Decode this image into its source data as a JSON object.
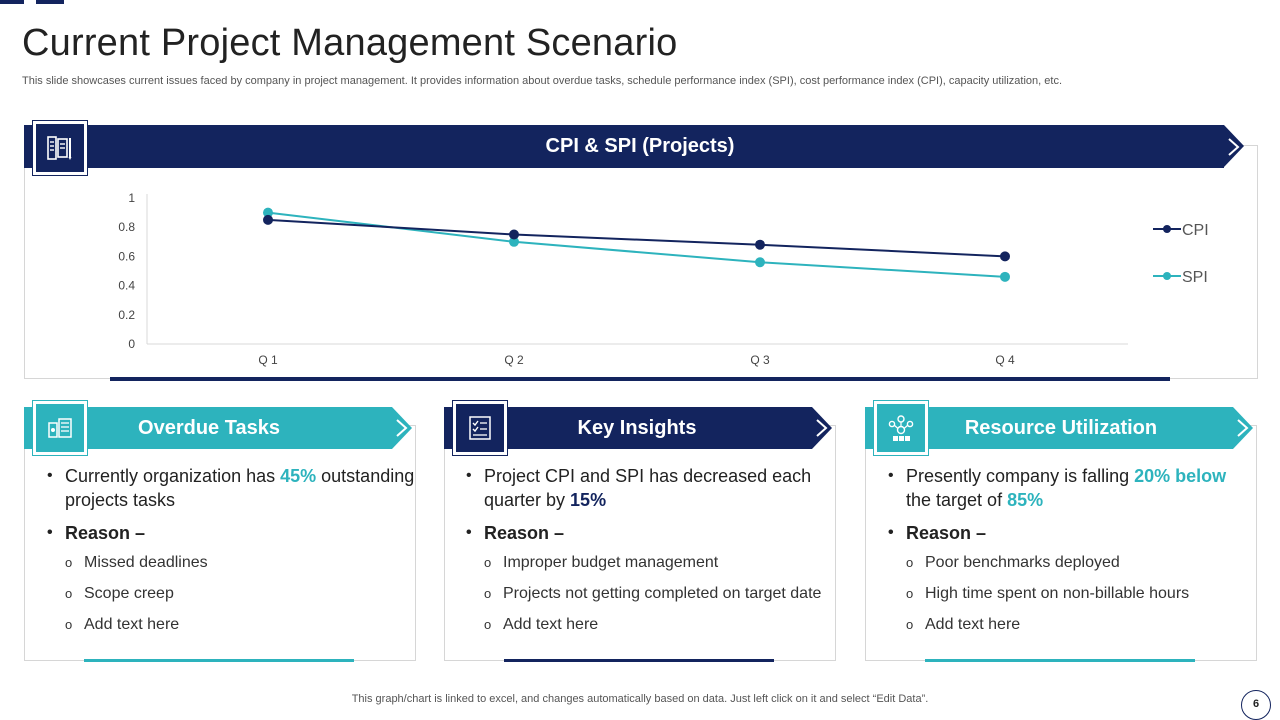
{
  "page": {
    "title": "Current Project Management Scenario",
    "subtitle": "This slide showcases current issues faced by company in project management. It provides information about overdue tasks, schedule performance index (SPI), cost performance index (CPI), capacity utilization, etc.",
    "footer": "This graph/chart is linked to excel,  and changes automatically based on data. Just left click on it and select “Edit Data”.",
    "page_number": "6"
  },
  "colors": {
    "navy": "#13245e",
    "teal": "#2db3bd"
  },
  "chart_panel": {
    "title": "CPI & SPI (Projects)",
    "icon": "document-list-icon"
  },
  "chart_data": {
    "type": "line",
    "title": "CPI & SPI (Projects)",
    "categories": [
      "Q 1",
      "Q 2",
      "Q 3",
      "Q 4"
    ],
    "series": [
      {
        "name": "CPI",
        "values": [
          0.85,
          0.75,
          0.68,
          0.6
        ],
        "color": "#13245e"
      },
      {
        "name": "SPI",
        "values": [
          0.9,
          0.7,
          0.56,
          0.46
        ],
        "color": "#2db3bd"
      }
    ],
    "ylim": [
      0,
      1
    ],
    "yticks": [
      "0",
      "0.2",
      "0.4",
      "0.6",
      "0.8",
      "1"
    ],
    "xlabel": "",
    "ylabel": "",
    "legend": "right"
  },
  "cards": [
    {
      "title": "Overdue Tasks",
      "icon": "tasks-board-icon",
      "line1_pre": "Currently organization has ",
      "line1_hl": "45%",
      "line1_post": " outstanding projects tasks",
      "reason": "Reason –",
      "items": [
        "Missed deadlines",
        "Scope creep",
        "Add text here"
      ]
    },
    {
      "title": "Key Insights",
      "icon": "checklist-icon",
      "line1_pre": "Project CPI and SPI has decreased each quarter by ",
      "line1_hl": "15%",
      "line1_post": "",
      "reason": "Reason –",
      "items": [
        "Improper budget management",
        "Projects not getting completed on target date",
        "Add text here"
      ]
    },
    {
      "title": "Resource Utilization",
      "icon": "team-network-icon",
      "line1_pre": "Presently company is falling ",
      "line1_hl": "20% below",
      "line1_mid": " the target of ",
      "line1_hl2": "85%",
      "reason": "Reason –",
      "items": [
        "Poor benchmarks deployed",
        "High time spent on non-billable hours",
        "Add text here"
      ]
    }
  ]
}
